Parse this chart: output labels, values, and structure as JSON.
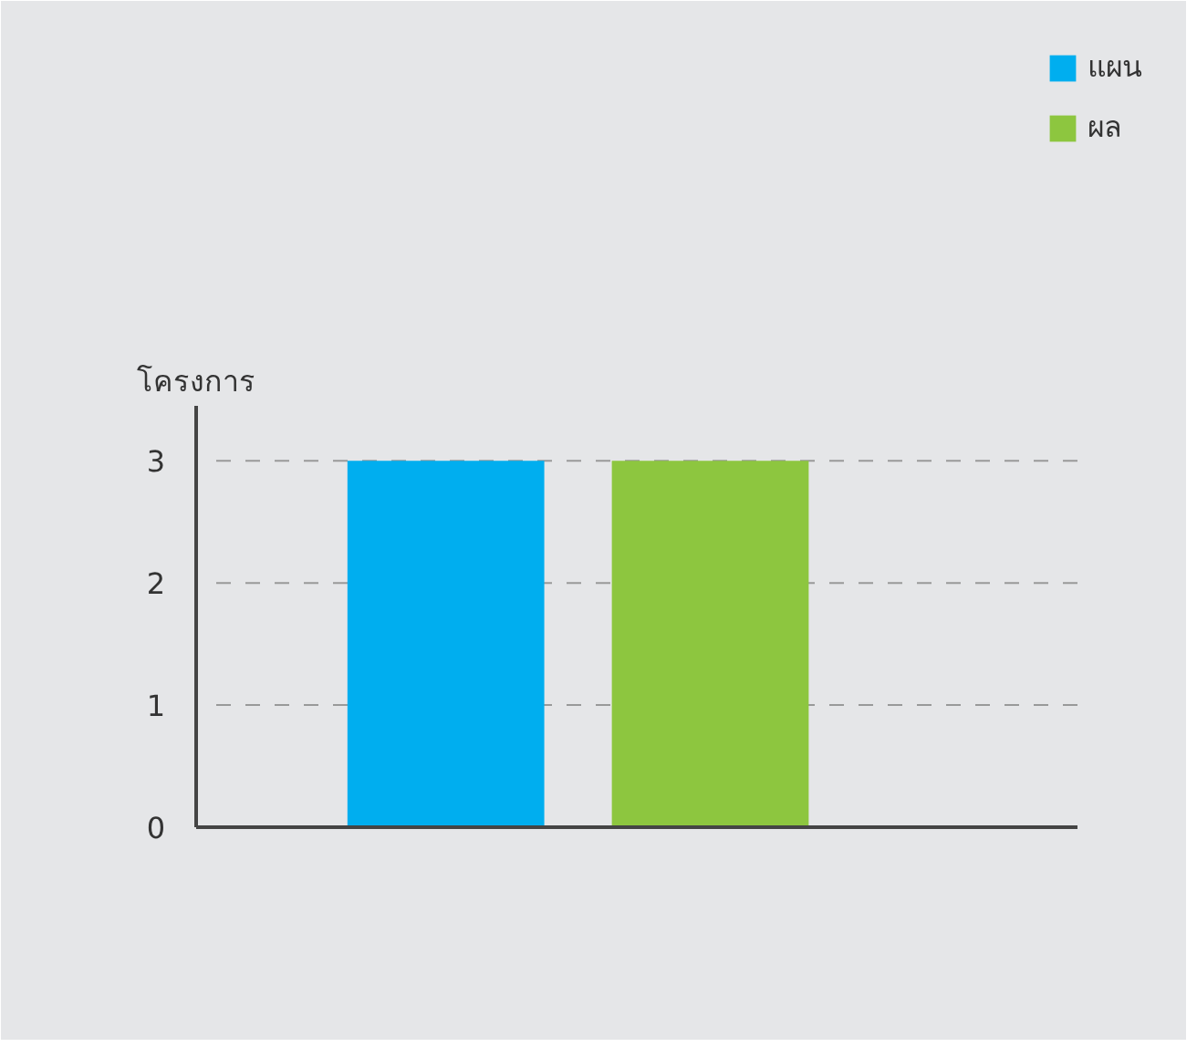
{
  "chart_data": {
    "type": "bar",
    "ylabel": "โครงการ",
    "categories": [
      null
    ],
    "series": [
      {
        "name": "แผน",
        "color": "#00aeef",
        "values": [
          3
        ]
      },
      {
        "name": "ผล",
        "color": "#8dc63f",
        "values": [
          3
        ]
      }
    ],
    "ylim": [
      0,
      3.45
    ],
    "yticks": [
      0,
      1,
      2,
      3
    ],
    "grid": "y",
    "legend": "top right"
  }
}
